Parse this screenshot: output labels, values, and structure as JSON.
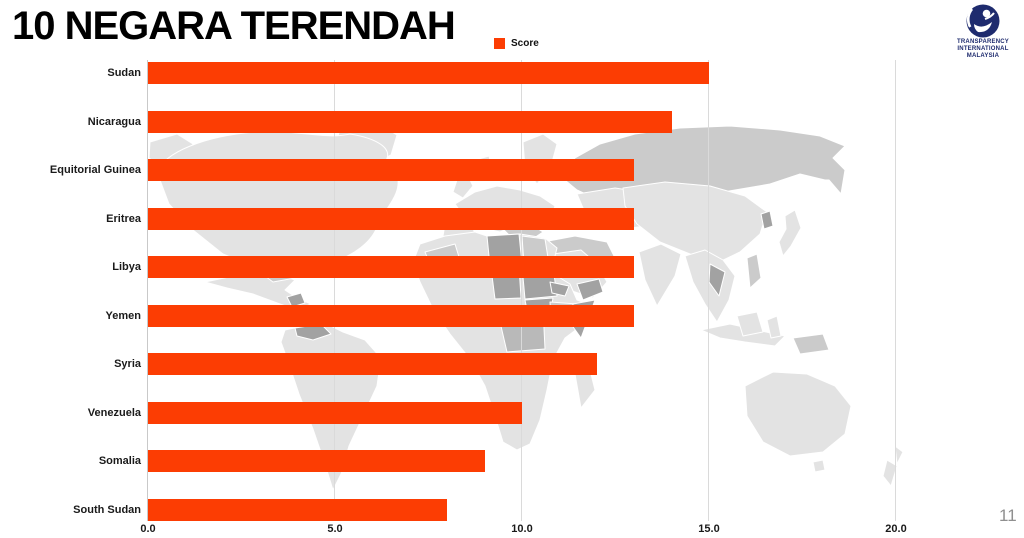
{
  "slide": {
    "title": "10 NEGARA TERENDAH",
    "page_number": "11"
  },
  "legend": {
    "label": "Score"
  },
  "logo": {
    "lines": [
      "TRANSPARENCY",
      "INTERNATIONAL",
      "MALAYSIA"
    ]
  },
  "colors": {
    "bar": "#FC3D03",
    "gridline": "#DADADA",
    "logo": "#1E2B6E",
    "page_number": "#8F8F8F"
  },
  "chart_data": {
    "type": "bar",
    "orientation": "horizontal",
    "title": "10 NEGARA TERENDAH",
    "series_name": "Score",
    "categories": [
      "Sudan",
      "Nicaragua",
      "Equitorial Guinea",
      "Eritrea",
      "Libya",
      "Yemen",
      "Syria",
      "Venezuela",
      "Somalia",
      "South Sudan"
    ],
    "values": [
      15.0,
      14.0,
      13.0,
      13.0,
      13.0,
      13.0,
      12.0,
      10.0,
      9.0,
      8.0
    ],
    "xlabel": "",
    "ylabel": "",
    "x_ticks": [
      "0.0",
      "5.0",
      "10.0",
      "15.0",
      "20.0"
    ],
    "x_tick_values": [
      0,
      5,
      10,
      15,
      20
    ],
    "xlim": [
      0,
      22.5
    ],
    "grid": "vertical",
    "legend_position": "top-center",
    "background": "world-map-grey"
  }
}
